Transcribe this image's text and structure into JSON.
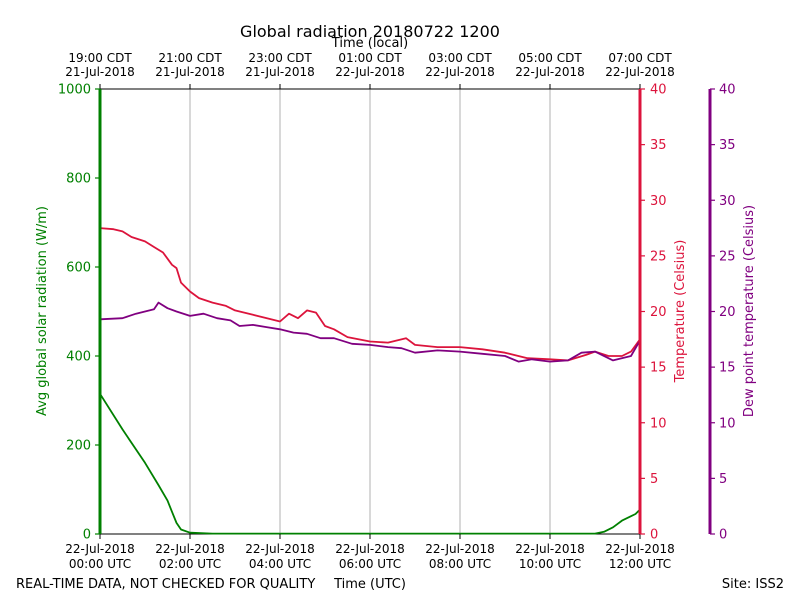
{
  "chart_data": {
    "type": "line",
    "title": "Global radiation 20180722 1200",
    "top_axis_label": "Time (local)",
    "xlabel": "Time (UTC)",
    "x_range_hours_utc": [
      0,
      12
    ],
    "top_ticks": [
      {
        "h": 0,
        "time": "19:00 CDT",
        "date": "21-Jul-2018"
      },
      {
        "h": 2,
        "time": "21:00 CDT",
        "date": "21-Jul-2018"
      },
      {
        "h": 4,
        "time": "23:00 CDT",
        "date": "21-Jul-2018"
      },
      {
        "h": 6,
        "time": "01:00 CDT",
        "date": "22-Jul-2018"
      },
      {
        "h": 8,
        "time": "03:00 CDT",
        "date": "22-Jul-2018"
      },
      {
        "h": 10,
        "time": "05:00 CDT",
        "date": "22-Jul-2018"
      },
      {
        "h": 12,
        "time": "07:00 CDT",
        "date": "22-Jul-2018"
      }
    ],
    "bottom_ticks": [
      {
        "h": 0,
        "date": "22-Jul-2018",
        "time": "00:00 UTC"
      },
      {
        "h": 2,
        "date": "22-Jul-2018",
        "time": "02:00 UTC"
      },
      {
        "h": 4,
        "date": "22-Jul-2018",
        "time": "04:00 UTC"
      },
      {
        "h": 6,
        "date": "22-Jul-2018",
        "time": "06:00 UTC"
      },
      {
        "h": 8,
        "date": "22-Jul-2018",
        "time": "08:00 UTC"
      },
      {
        "h": 10,
        "date": "22-Jul-2018",
        "time": "10:00 UTC"
      },
      {
        "h": 12,
        "date": "22-Jul-2018",
        "time": "12:00 UTC"
      }
    ],
    "y_axes": {
      "radiation": {
        "label": "Avg global solar radiation (W/m)",
        "range": [
          0,
          1000
        ],
        "ticks": [
          0,
          200,
          400,
          600,
          800,
          1000
        ],
        "color": "#008000"
      },
      "temperature": {
        "label": "Temperature (Celsius)",
        "range": [
          0,
          40
        ],
        "ticks": [
          0,
          5,
          10,
          15,
          20,
          25,
          30,
          35,
          40
        ],
        "color": "#dc143c"
      },
      "dewpoint": {
        "label": "Dew point temperature (Celsius)",
        "range": [
          0,
          40
        ],
        "ticks": [
          0,
          5,
          10,
          15,
          20,
          25,
          30,
          35,
          40
        ],
        "color": "#800080"
      }
    },
    "series": [
      {
        "name": "Avg global solar radiation",
        "axis": "radiation",
        "color": "#008000",
        "x": [
          0,
          0.5,
          1,
          1.3,
          1.5,
          1.6,
          1.7,
          1.8,
          2,
          2.5,
          4,
          6,
          8,
          10,
          11,
          11.2,
          11.4,
          11.6,
          11.8,
          11.9,
          12
        ],
        "y": [
          315,
          235,
          160,
          110,
          75,
          50,
          25,
          10,
          3,
          1,
          1,
          1,
          1,
          1,
          1,
          5,
          15,
          30,
          40,
          45,
          55
        ]
      },
      {
        "name": "Temperature",
        "axis": "temperature",
        "color": "#dc143c",
        "x": [
          0,
          0.3,
          0.5,
          0.7,
          1,
          1.2,
          1.4,
          1.6,
          1.7,
          1.8,
          2,
          2.2,
          2.5,
          2.8,
          3,
          3.4,
          3.8,
          4,
          4.2,
          4.4,
          4.6,
          4.8,
          5,
          5.2,
          5.5,
          6,
          6.4,
          6.8,
          7,
          7.5,
          8,
          8.5,
          9,
          9.5,
          10,
          10.4,
          10.8,
          11,
          11.3,
          11.6,
          11.8,
          12
        ],
        "y": [
          27.5,
          27.4,
          27.2,
          26.7,
          26.3,
          25.8,
          25.3,
          24.2,
          23.9,
          22.6,
          21.8,
          21.2,
          20.8,
          20.5,
          20.1,
          19.7,
          19.3,
          19.1,
          19.8,
          19.4,
          20.1,
          19.9,
          18.7,
          18.4,
          17.7,
          17.3,
          17.2,
          17.6,
          17.0,
          16.8,
          16.8,
          16.6,
          16.3,
          15.8,
          15.7,
          15.6,
          16.1,
          16.4,
          16.0,
          16.0,
          16.4,
          17.5
        ]
      },
      {
        "name": "Dew point temperature",
        "axis": "dewpoint",
        "color": "#800080",
        "x": [
          0,
          0.5,
          0.8,
          1,
          1.2,
          1.3,
          1.5,
          1.7,
          2,
          2.3,
          2.6,
          2.9,
          3.1,
          3.4,
          3.7,
          4,
          4.3,
          4.6,
          4.9,
          5.2,
          5.6,
          6,
          6.4,
          6.7,
          7,
          7.5,
          8,
          8.5,
          9,
          9.3,
          9.6,
          10,
          10.4,
          10.7,
          11,
          11.4,
          11.8,
          12
        ],
        "y": [
          19.3,
          19.4,
          19.8,
          20.0,
          20.2,
          20.8,
          20.3,
          20.0,
          19.6,
          19.8,
          19.4,
          19.2,
          18.7,
          18.8,
          18.6,
          18.4,
          18.1,
          18.0,
          17.6,
          17.6,
          17.1,
          17.0,
          16.8,
          16.7,
          16.3,
          16.5,
          16.4,
          16.2,
          16.0,
          15.5,
          15.7,
          15.5,
          15.6,
          16.3,
          16.4,
          15.6,
          16.0,
          17.4
        ]
      }
    ]
  },
  "footer": {
    "left": "REAL-TIME DATA, NOT CHECKED FOR QUALITY",
    "right": "Site: ISS2"
  }
}
